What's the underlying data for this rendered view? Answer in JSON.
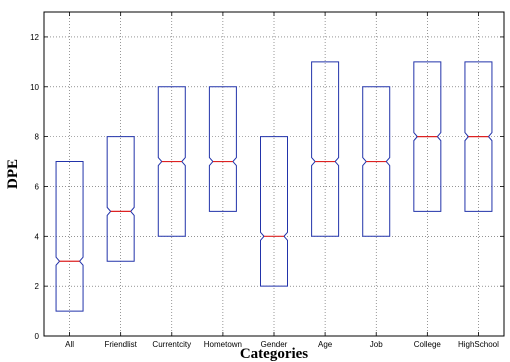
{
  "chart_data": {
    "type": "box",
    "title": "",
    "xlabel": "Categories",
    "ylabel": "DPE",
    "ylim": [
      0,
      13
    ],
    "yticks": [
      0,
      2,
      4,
      6,
      8,
      10,
      12
    ],
    "grid": true,
    "notched": true,
    "categories": [
      "All",
      "Friendlist",
      "Currentcity",
      "Hometown",
      "Gender",
      "Age",
      "Job",
      "College",
      "HighSchool"
    ],
    "boxes": [
      {
        "category": "All",
        "q1": 1,
        "median": 3,
        "q3": 7
      },
      {
        "category": "Friendlist",
        "q1": 3,
        "median": 5,
        "q3": 8
      },
      {
        "category": "Currentcity",
        "q1": 4,
        "median": 7,
        "q3": 10
      },
      {
        "category": "Hometown",
        "q1": 5,
        "median": 7,
        "q3": 10
      },
      {
        "category": "Gender",
        "q1": 2,
        "median": 4,
        "q3": 8
      },
      {
        "category": "Age",
        "q1": 4,
        "median": 7,
        "q3": 11
      },
      {
        "category": "Job",
        "q1": 4,
        "median": 7,
        "q3": 10
      },
      {
        "category": "College",
        "q1": 5,
        "median": 8,
        "q3": 11
      },
      {
        "category": "HighSchool",
        "q1": 5,
        "median": 8,
        "q3": 11
      }
    ],
    "colors": {
      "box": "#2233aa",
      "median": "#dd2222",
      "grid": "#555555",
      "axis": "#000000"
    }
  }
}
